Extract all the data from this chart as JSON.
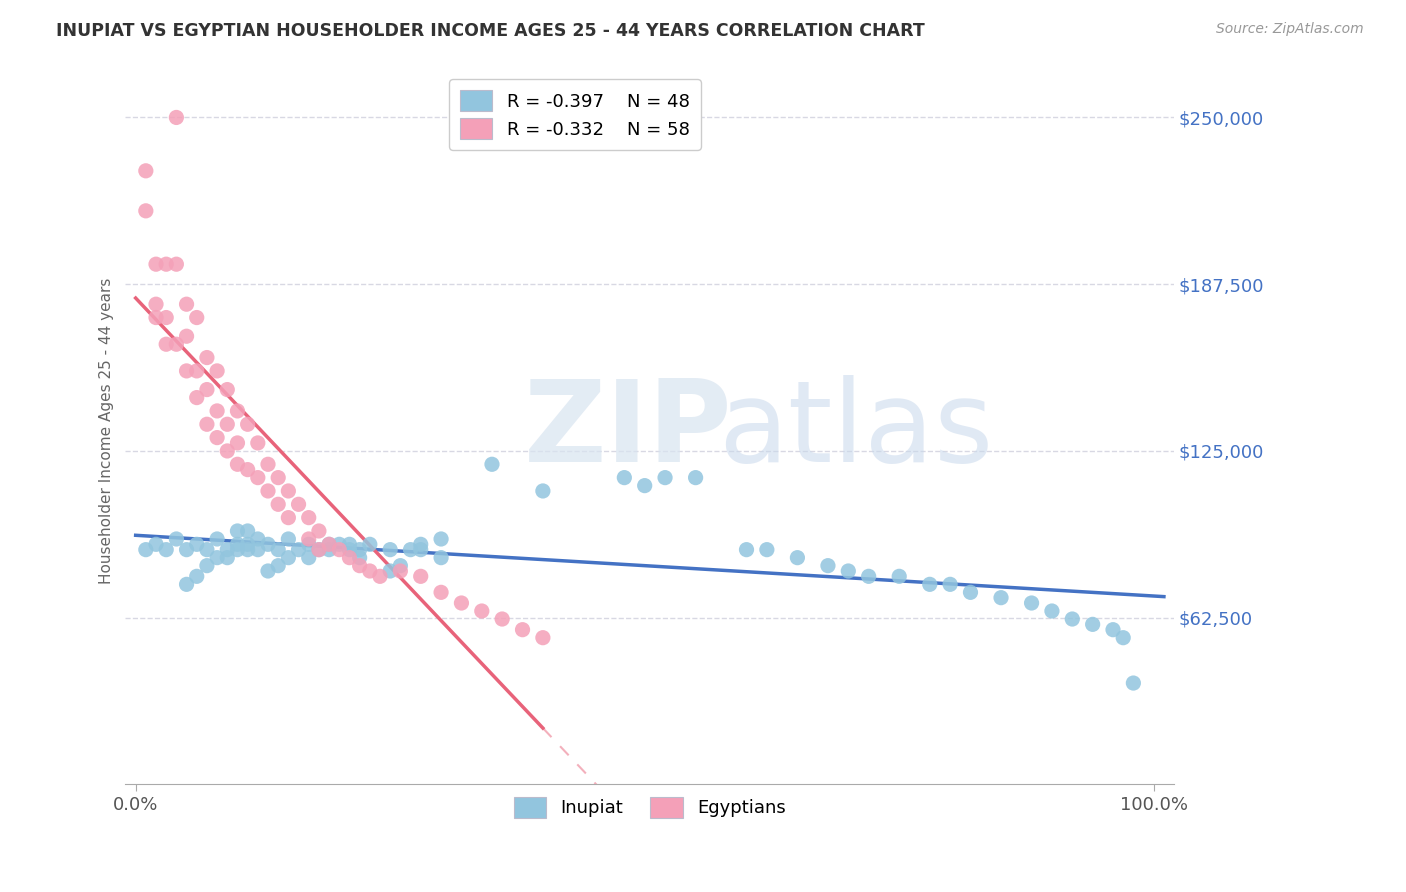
{
  "title": "INUPIAT VS EGYPTIAN HOUSEHOLDER INCOME AGES 25 - 44 YEARS CORRELATION CHART",
  "source": "Source: ZipAtlas.com",
  "ylabel": "Householder Income Ages 25 - 44 years",
  "xlim": [
    -0.01,
    1.02
  ],
  "ylim": [
    0,
    265000
  ],
  "xtick_positions": [
    0.0,
    1.0
  ],
  "xtick_labels": [
    "0.0%",
    "100.0%"
  ],
  "ytick_values": [
    62500,
    125000,
    187500,
    250000
  ],
  "ytick_labels": [
    "$62,500",
    "$125,000",
    "$187,500",
    "$250,000"
  ],
  "legend_r1": "-0.397",
  "legend_n1": "48",
  "legend_r2": "-0.332",
  "legend_n2": "58",
  "color_inupiat": "#92C5DE",
  "color_egyptian": "#F4A0B8",
  "color_inupiat_line": "#4472C4",
  "color_egyptian_line": "#E8637A",
  "color_text_blue": "#4472C4",
  "color_grid": "#C8C8D8",
  "inupiat_x": [
    0.01,
    0.02,
    0.03,
    0.04,
    0.05,
    0.06,
    0.07,
    0.08,
    0.09,
    0.1,
    0.1,
    0.11,
    0.11,
    0.12,
    0.12,
    0.13,
    0.14,
    0.15,
    0.16,
    0.17,
    0.18,
    0.19,
    0.2,
    0.21,
    0.22,
    0.23,
    0.13,
    0.14,
    0.15,
    0.22,
    0.25,
    0.27,
    0.28,
    0.3,
    0.25,
    0.26,
    0.1,
    0.11,
    0.09,
    0.08,
    0.07,
    0.06,
    0.05,
    0.17,
    0.19,
    0.21,
    0.28,
    0.3
  ],
  "inupiat_y": [
    88000,
    90000,
    88000,
    92000,
    88000,
    90000,
    88000,
    92000,
    88000,
    90000,
    88000,
    90000,
    88000,
    92000,
    88000,
    90000,
    88000,
    92000,
    88000,
    90000,
    88000,
    90000,
    90000,
    88000,
    88000,
    90000,
    80000,
    82000,
    85000,
    85000,
    88000,
    88000,
    90000,
    92000,
    80000,
    82000,
    95000,
    95000,
    85000,
    85000,
    82000,
    78000,
    75000,
    85000,
    88000,
    90000,
    88000,
    85000
  ],
  "inupiat_x2": [
    0.35,
    0.4,
    0.48,
    0.5,
    0.52,
    0.55,
    0.6,
    0.62,
    0.65,
    0.68,
    0.7,
    0.72,
    0.75,
    0.78,
    0.8,
    0.82,
    0.85,
    0.88,
    0.9,
    0.92,
    0.94,
    0.96,
    0.97,
    0.98
  ],
  "inupiat_y2": [
    120000,
    110000,
    115000,
    112000,
    115000,
    115000,
    88000,
    88000,
    85000,
    82000,
    80000,
    78000,
    78000,
    75000,
    75000,
    72000,
    70000,
    68000,
    65000,
    62000,
    60000,
    58000,
    55000,
    38000
  ],
  "egyptian_x": [
    0.01,
    0.01,
    0.02,
    0.02,
    0.02,
    0.03,
    0.03,
    0.03,
    0.04,
    0.04,
    0.04,
    0.05,
    0.05,
    0.05,
    0.06,
    0.06,
    0.06,
    0.07,
    0.07,
    0.07,
    0.08,
    0.08,
    0.08,
    0.09,
    0.09,
    0.09,
    0.1,
    0.1,
    0.1,
    0.11,
    0.11,
    0.12,
    0.12,
    0.13,
    0.13,
    0.14,
    0.14,
    0.15,
    0.15,
    0.16,
    0.17,
    0.17,
    0.18,
    0.18,
    0.19,
    0.2,
    0.21,
    0.22,
    0.23,
    0.24,
    0.26,
    0.28,
    0.3,
    0.32,
    0.34,
    0.36,
    0.38,
    0.4
  ],
  "egyptian_y": [
    230000,
    215000,
    195000,
    180000,
    175000,
    195000,
    175000,
    165000,
    250000,
    195000,
    165000,
    180000,
    168000,
    155000,
    175000,
    155000,
    145000,
    160000,
    148000,
    135000,
    155000,
    140000,
    130000,
    148000,
    135000,
    125000,
    140000,
    128000,
    120000,
    135000,
    118000,
    128000,
    115000,
    120000,
    110000,
    115000,
    105000,
    110000,
    100000,
    105000,
    100000,
    92000,
    95000,
    88000,
    90000,
    88000,
    85000,
    82000,
    80000,
    78000,
    80000,
    78000,
    72000,
    68000,
    65000,
    62000,
    58000,
    55000
  ]
}
